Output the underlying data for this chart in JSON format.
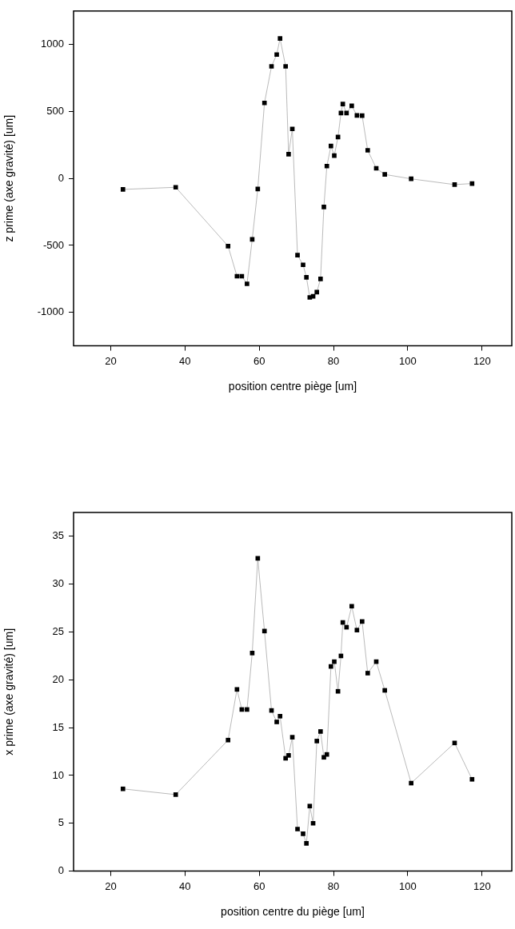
{
  "chart_data": [
    {
      "type": "line",
      "marker": "square",
      "grid": false,
      "xlabel": "position centre piège [um]",
      "ylabel": "z prime (axe gravité) [um]",
      "xlim": [
        10,
        128
      ],
      "xticks": [
        20,
        40,
        60,
        80,
        100,
        120
      ],
      "ylim": [
        -1250,
        1250
      ],
      "yticks": [
        -1000,
        -500,
        0,
        500,
        1000
      ],
      "x": [
        23.3,
        37.5,
        51.6,
        54.0,
        55.3,
        56.7,
        58.1,
        59.6,
        61.4,
        63.3,
        64.7,
        65.6,
        67.1,
        67.9,
        68.9,
        70.3,
        71.8,
        72.7,
        73.6,
        74.5,
        75.5,
        76.5,
        77.4,
        78.2,
        79.3,
        80.2,
        81.2,
        82.0,
        82.5,
        83.5,
        84.9,
        86.3,
        87.7,
        89.2,
        91.5,
        93.8,
        100.9,
        112.6,
        117.3
      ],
      "series": [
        {
          "color": "#000000",
          "values": [
            -82,
            -66,
            -505,
            -730,
            -730,
            -787,
            -455,
            -79,
            564,
            837,
            925,
            1045,
            837,
            181,
            370,
            -573,
            -645,
            -738,
            -888,
            -880,
            -849,
            -750,
            -213,
            92,
            242,
            171,
            309,
            488,
            556,
            488,
            542,
            471,
            469,
            210,
            76,
            30,
            -3,
            -46,
            -38
          ]
        }
      ]
    },
    {
      "type": "line",
      "marker": "square",
      "grid": false,
      "xlabel": "position centre du piège [um]",
      "ylabel": "x prime (axe gravité) [um]",
      "xlim": [
        10,
        128
      ],
      "xticks": [
        20,
        40,
        60,
        80,
        100,
        120
      ],
      "ylim": [
        0,
        37.5
      ],
      "yticks": [
        0,
        5,
        10,
        15,
        20,
        25,
        30,
        35
      ],
      "x": [
        23.3,
        37.5,
        51.6,
        54.0,
        55.3,
        56.7,
        58.1,
        59.6,
        61.4,
        63.3,
        64.7,
        65.6,
        67.1,
        67.9,
        68.9,
        70.3,
        71.8,
        72.7,
        73.6,
        74.5,
        75.5,
        76.5,
        77.4,
        78.2,
        79.3,
        80.2,
        81.2,
        82.0,
        82.5,
        83.5,
        84.9,
        86.3,
        87.7,
        89.2,
        91.5,
        93.8,
        100.9,
        112.6,
        117.3
      ],
      "series": [
        {
          "color": "#000000",
          "values": [
            8.6,
            8.0,
            13.7,
            19.0,
            16.9,
            16.9,
            22.8,
            32.7,
            25.1,
            16.8,
            15.6,
            16.2,
            11.8,
            12.1,
            14.0,
            4.4,
            3.9,
            2.9,
            6.8,
            5.0,
            13.6,
            14.6,
            11.9,
            12.2,
            21.4,
            21.9,
            18.8,
            22.5,
            26.0,
            25.5,
            27.7,
            25.2,
            26.1,
            20.7,
            21.9,
            18.9,
            9.2,
            13.4,
            9.6
          ]
        }
      ]
    }
  ]
}
